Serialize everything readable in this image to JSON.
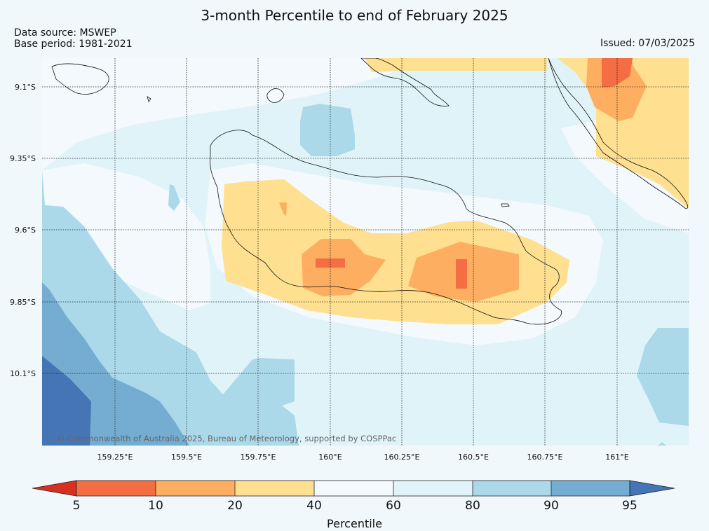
{
  "title": "3-month Percentile to end of February 2025",
  "source": "Data source: MSWEP",
  "base_period": "Base period: 1981-2021",
  "issued": "Issued: 07/03/2025",
  "copyright": "© Commonwealth of Australia 2025, Bureau of Meteorology, supported by COSPPac",
  "map": {
    "lat_labels": [
      "9.1°S",
      "9.35°S",
      "9.6°S",
      "9.85°S",
      "10.1°S"
    ],
    "lon_labels": [
      "159.25°E",
      "159.5°E",
      "159.75°E",
      "160°E",
      "160.25°E",
      "160.5°E",
      "160.75°E",
      "161°E"
    ],
    "lat_values": [
      -9.1,
      -9.35,
      -9.6,
      -9.85,
      -10.1
    ],
    "lon_values": [
      159.25,
      159.5,
      159.75,
      160.0,
      160.25,
      160.5,
      160.75,
      161.0
    ],
    "extent": {
      "lon_min": 159.0,
      "lon_max": 161.25,
      "lat_min": -10.35,
      "lat_max": -9.0
    }
  },
  "colorbar": {
    "label": "Percentile",
    "ticks": [
      "5",
      "10",
      "20",
      "40",
      "60",
      "80",
      "90",
      "95"
    ],
    "categories": [
      {
        "range": "<5",
        "color": "#d7301f"
      },
      {
        "range": "5-10",
        "color": "#f46d43"
      },
      {
        "range": "10-20",
        "color": "#fdae61"
      },
      {
        "range": "20-40",
        "color": "#fee090"
      },
      {
        "range": "40-60",
        "color": "#f3f9fc"
      },
      {
        "range": "60-80",
        "color": "#e0f3f8"
      },
      {
        "range": "80-90",
        "color": "#abd9e9"
      },
      {
        "range": "90-95",
        "color": "#74add1"
      },
      {
        "range": ">95",
        "color": "#4575b4"
      }
    ]
  }
}
